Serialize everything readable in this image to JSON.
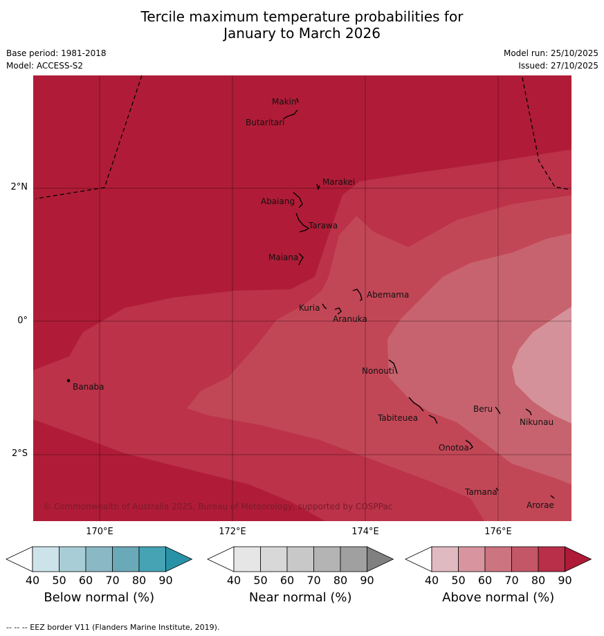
{
  "title": {
    "line1": "Tercile maximum temperature probabilities for",
    "line2": "January to March 2026"
  },
  "meta": {
    "base_period": "Base period: 1981-2018",
    "model": "Model: ACCESS-S2",
    "model_run": "Model run: 25/10/2025",
    "issued": "Issued: 27/10/2025"
  },
  "axes": {
    "lat_labels": [
      "2°N",
      "0°",
      "2°S"
    ],
    "lon_labels": [
      "170°E",
      "172°E",
      "174°E",
      "176°E"
    ]
  },
  "islands": [
    {
      "name": "Makin"
    },
    {
      "name": "Butaritari"
    },
    {
      "name": "Marakei"
    },
    {
      "name": "Abaiang"
    },
    {
      "name": "Tarawa"
    },
    {
      "name": "Maiana"
    },
    {
      "name": "Abemama"
    },
    {
      "name": "Kuria"
    },
    {
      "name": "Aranuka"
    },
    {
      "name": "Nonouti"
    },
    {
      "name": "Banaba"
    },
    {
      "name": "Beru"
    },
    {
      "name": "Nikunau"
    },
    {
      "name": "Tabiteuea"
    },
    {
      "name": "Onotoa"
    },
    {
      "name": "Tamana"
    },
    {
      "name": "Arorae"
    }
  ],
  "copyright": "© Commonwealth of Australia 2025, Bureau of Meteorology, supported by COSPPac",
  "colorbars": [
    {
      "label": "Below normal (%)",
      "ticks": [
        "40",
        "50",
        "60",
        "70",
        "80",
        "90"
      ],
      "colors": [
        "#ffffff",
        "#cde3ea",
        "#a9cdd6",
        "#8ab9c5",
        "#6aa9b8",
        "#45a3b4",
        "#2a92a6"
      ]
    },
    {
      "label": "Near normal (%)",
      "ticks": [
        "40",
        "50",
        "60",
        "70",
        "80",
        "90"
      ],
      "colors": [
        "#ffffff",
        "#e6e6e6",
        "#d8d8d8",
        "#c8c8c8",
        "#b4b4b4",
        "#a0a0a0",
        "#808080"
      ]
    },
    {
      "label": "Above normal (%)",
      "ticks": [
        "40",
        "50",
        "60",
        "70",
        "80",
        "90"
      ],
      "colors": [
        "#ffffff",
        "#e1b9c0",
        "#d8959f",
        "#cc7480",
        "#c45767",
        "#b92e49",
        "#ae1a38"
      ]
    }
  ],
  "zone_colors": {
    "z90": "#b01c37",
    "z80": "#bb3249",
    "z70": "#c24756",
    "z60": "#c7636e",
    "z50": "#d59199"
  },
  "footer": "--  --  -- EEZ border V11 (Flanders Marine Institute, 2019)."
}
